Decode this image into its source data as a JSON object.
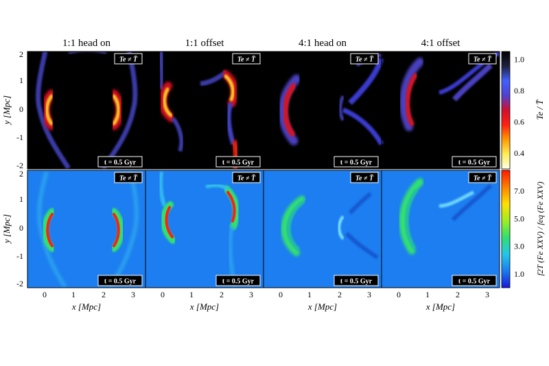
{
  "figure": {
    "columns": [
      {
        "title": "1:1 head on"
      },
      {
        "title": "1:1 offset"
      },
      {
        "title": "4:1 head on"
      },
      {
        "title": "4:1 offset"
      }
    ],
    "rows": [
      {
        "ylabel": "y [Mpc]",
        "badge": "Te ≠ T̄",
        "time_label": "t = 0.5 Gyr"
      },
      {
        "ylabel": "y [Mpc]",
        "badge": "Te ≠ T̄",
        "time_label": "t = 0.5 Gyr"
      }
    ],
    "xlabel": "x [Mpc]",
    "x_ticks": [
      "0",
      "1",
      "2",
      "3"
    ],
    "y_ticks": [
      "2",
      "1",
      "0",
      "-1",
      "-2"
    ],
    "colorbar_top": {
      "label": "Te / T̄",
      "ticks": [
        "1.0",
        "0.8",
        "0.6",
        "0.4"
      ],
      "range": [
        0.3,
        1.05
      ],
      "colors": [
        "#ffffe8",
        "#ffee55",
        "#ff9a00",
        "#ff2010",
        "#d01030",
        "#5040d0",
        "#4060ff",
        "#202040",
        "#000000"
      ]
    },
    "colorbar_bottom": {
      "label": "f2T (Fe XXV) / feq (Fe XXV)",
      "ticks": [
        "7.0",
        "5.0",
        "3.0",
        "1.0"
      ],
      "range": [
        0.0,
        8.5
      ],
      "colors": [
        "#1818d8",
        "#1a7cf0",
        "#22c8e8",
        "#30e070",
        "#a0ee20",
        "#ffe000",
        "#ff8000",
        "#ff1800"
      ]
    }
  }
}
